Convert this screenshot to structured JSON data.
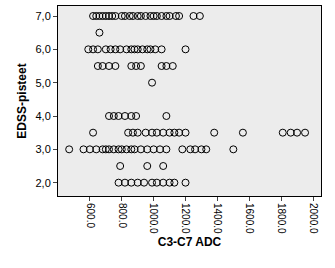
{
  "chart_data": {
    "type": "scatter",
    "xlabel": "C3-C7 ADC",
    "ylabel": "EDSS-pisteet",
    "x": [
      620,
      640,
      660,
      680,
      700,
      720,
      740,
      760,
      800,
      820,
      850,
      870,
      900,
      920,
      950,
      980,
      1000,
      1020,
      1050,
      1080,
      1100,
      1140,
      1160,
      1250,
      1290,
      660,
      590,
      620,
      650,
      700,
      730,
      760,
      790,
      830,
      860,
      880,
      900,
      930,
      960,
      980,
      1010,
      1050,
      1200,
      650,
      680,
      720,
      760,
      860,
      890,
      920,
      1050,
      1080,
      1120,
      990,
      720,
      750,
      780,
      820,
      860,
      890,
      1080,
      620,
      840,
      870,
      900,
      950,
      990,
      1020,
      1060,
      1100,
      1130,
      1160,
      1200,
      1380,
      1560,
      1810,
      1860,
      1900,
      1950,
      470,
      560,
      600,
      640,
      680,
      700,
      720,
      750,
      780,
      800,
      830,
      860,
      880,
      920,
      960,
      1000,
      1040,
      1080,
      1180,
      1230,
      1260,
      1300,
      1330,
      1500,
      790,
      960,
      1060,
      780,
      820,
      860,
      900,
      940,
      990,
      1020,
      1060,
      1100,
      1130,
      1200
    ],
    "y": [
      7,
      7,
      7,
      7,
      7,
      7,
      7,
      7,
      7,
      7,
      7,
      7,
      7,
      7,
      7,
      7,
      7,
      7,
      7,
      7,
      7,
      7,
      7,
      7,
      7,
      6.5,
      6,
      6,
      6,
      6,
      6,
      6,
      6,
      6,
      6,
      6,
      6,
      6,
      6,
      6,
      6,
      6,
      6,
      5.5,
      5.5,
      5.5,
      5.5,
      5.5,
      5.5,
      5.5,
      5.5,
      5.5,
      5.5,
      5,
      4,
      4,
      4,
      4,
      4,
      4,
      4,
      3.5,
      3.5,
      3.5,
      3.5,
      3.5,
      3.5,
      3.5,
      3.5,
      3.5,
      3.5,
      3.5,
      3.5,
      3.5,
      3.5,
      3.5,
      3.5,
      3.5,
      3.5,
      3,
      3,
      3,
      3,
      3,
      3,
      3,
      3,
      3,
      3,
      3,
      3,
      3,
      3,
      3,
      3,
      3,
      3,
      3,
      3,
      3,
      3,
      3,
      3,
      2.5,
      2.5,
      2.5,
      2,
      2,
      2,
      2,
      2,
      2,
      2,
      2,
      2,
      2,
      2
    ],
    "color": "#000000",
    "marker": "circle-open",
    "xlim": [
      400,
      2050
    ],
    "ylim": [
      1.6,
      7.3
    ],
    "xticks": [
      {
        "value": 600,
        "label": "600.0"
      },
      {
        "value": 800,
        "label": "800.0"
      },
      {
        "value": 1000,
        "label": "1000.0"
      },
      {
        "value": 1200,
        "label": "1200.0"
      },
      {
        "value": 1400,
        "label": "1400.0"
      },
      {
        "value": 1600,
        "label": "1600.0"
      },
      {
        "value": 1800,
        "label": "1800.0"
      },
      {
        "value": 2000,
        "label": "2000.0"
      }
    ],
    "yticks": [
      {
        "value": 2,
        "label": "2,0"
      },
      {
        "value": 3,
        "label": "3,0"
      },
      {
        "value": 4,
        "label": "4,0"
      },
      {
        "value": 5,
        "label": "5,0"
      },
      {
        "value": 6,
        "label": "6,0"
      },
      {
        "value": 7,
        "label": "7,0"
      }
    ],
    "grid": false
  }
}
